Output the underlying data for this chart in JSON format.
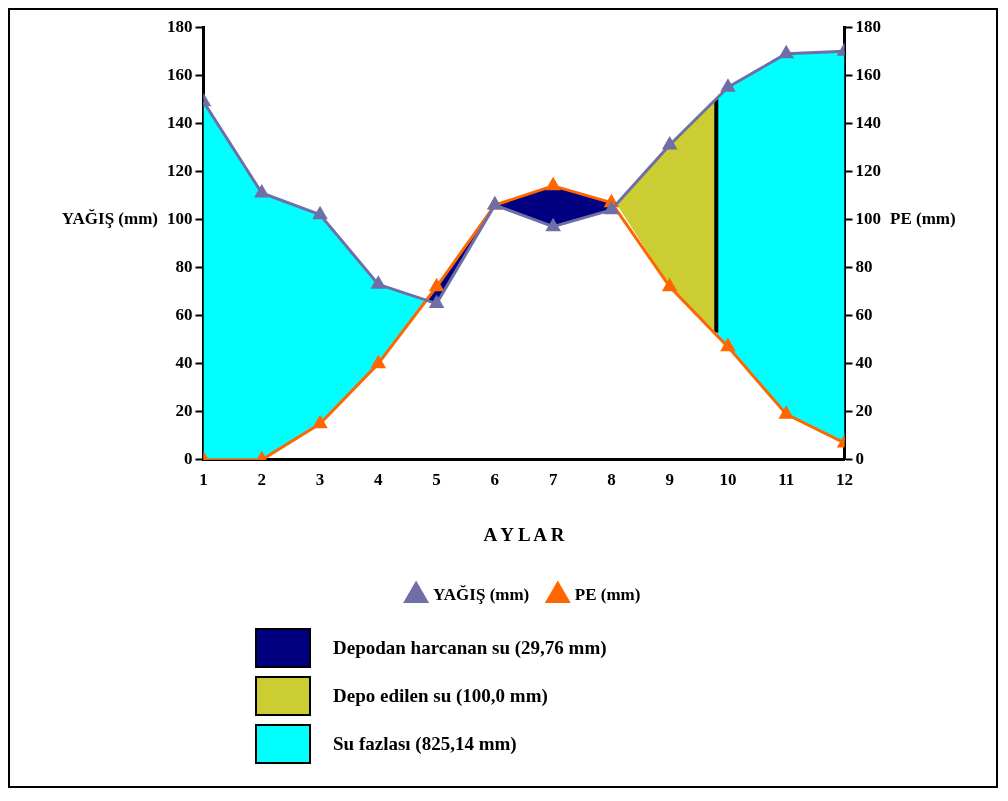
{
  "chart_data": {
    "type": "line",
    "xlabel": "A Y L A R",
    "ylabel": "YAĞIŞ (mm)",
    "y2label": "PE (mm)",
    "xlim": [
      1,
      12
    ],
    "xticks": [
      1,
      2,
      3,
      4,
      5,
      6,
      7,
      8,
      9,
      10,
      11,
      12
    ],
    "ylim": [
      0,
      180
    ],
    "yticks": [
      0,
      20,
      40,
      60,
      80,
      100,
      120,
      140,
      160,
      180
    ],
    "y2lim": [
      0,
      180
    ],
    "y2ticks": [
      0,
      20,
      40,
      60,
      80,
      100,
      120,
      140,
      160,
      180
    ],
    "grid": false,
    "legend": "bottom",
    "marker": "triangle",
    "series": [
      {
        "name": "Depodan harcanan su (29,76 mm)",
        "color": "#000080",
        "x": [
          4.8,
          5,
          6,
          7,
          8,
          8.1
        ],
        "values": [
          null,
          null,
          null,
          null,
          null,
          null
        ],
        "lower": [
          66,
          65,
          106,
          97,
          104,
          106
        ],
        "upper": [
          66,
          72,
          106,
          114,
          107,
          106
        ]
      },
      {
        "name": "Depo edilen su (100,0 mm)",
        "color": "#cccc33",
        "x": [
          8.1,
          9,
          9.8
        ],
        "values": [
          null,
          null,
          null
        ],
        "lower": [
          106,
          72,
          53
        ],
        "upper": [
          106,
          131,
          150
        ]
      },
      {
        "name": "Su fazlası (825,14 mm)",
        "color": "#00ffff",
        "x": [
          1,
          2,
          3,
          4,
          4.8
        ],
        "values": [
          null,
          null,
          null,
          null,
          null
        ],
        "lower": [
          0,
          0,
          15,
          40,
          66
        ],
        "upper": [
          149,
          111,
          102,
          73,
          66
        ]
      },
      {
        "color": "#00ffff",
        "x": [
          9.8,
          10,
          11,
          12
        ],
        "values": [
          null,
          null,
          null,
          null
        ],
        "lower": [
          53,
          47,
          19,
          7
        ],
        "upper": [
          150,
          155,
          169,
          170
        ]
      },
      {
        "type": "line",
        "color": "#000000",
        "marker": "none",
        "x": [
          9.8,
          9.8
        ],
        "values": [
          53,
          150
        ]
      },
      {
        "name": "YAĞIŞ (mm)",
        "color": "#6f6fa8",
        "x": [
          1,
          2,
          3,
          4,
          5,
          6,
          7,
          8,
          9,
          10,
          11,
          12
        ],
        "values": [
          149,
          111,
          102,
          73,
          65,
          106,
          97,
          104,
          131,
          155,
          169,
          170
        ]
      },
      {
        "name": "PE (mm)",
        "color": "#ff6600",
        "x": [
          1,
          2,
          3,
          4,
          5,
          6,
          7,
          8,
          9,
          10,
          11,
          12
        ],
        "values": [
          0,
          0,
          15,
          40,
          72,
          106,
          114,
          107,
          72,
          47,
          19,
          7
        ]
      }
    ]
  }
}
